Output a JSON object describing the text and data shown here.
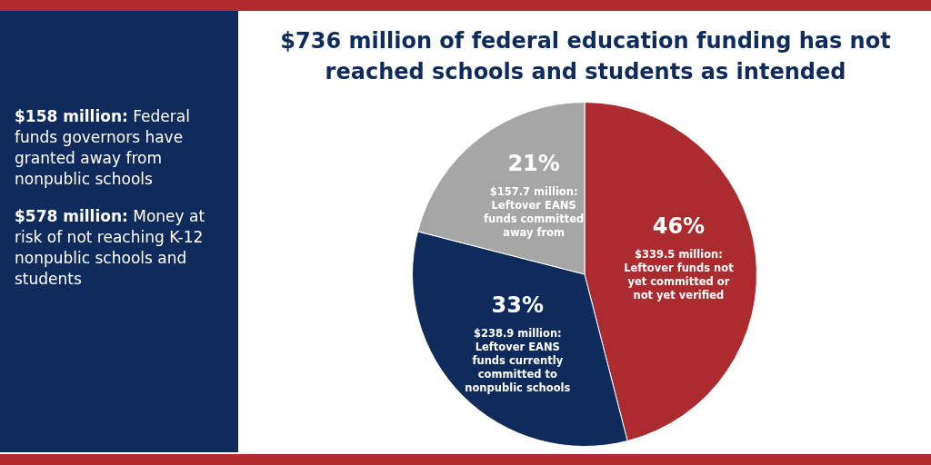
{
  "chart_data": {
    "type": "pie",
    "title": "$736 million of federal education funding has not reached schools and students as intended",
    "categories": [
      "$339.5 million: Leftover funds not yet committed or not yet verified",
      "$238.9 million: Leftover EANS funds currently committed to nonpublic schools",
      "$157.7 million: Leftover EANS funds committed away from"
    ],
    "values": [
      46,
      33,
      21
    ],
    "colors": [
      "#ab2b2e",
      "#0f2b5c",
      "#a6a6a6"
    ],
    "value_labels": [
      "46%",
      "33%",
      "21%"
    ],
    "legend": false,
    "annotations": [
      "$158 million: Federal funds governors have granted away from nonpublic schools",
      "$578 million: Money at risk of not reaching K-12 nonpublic schools and students"
    ]
  }
}
